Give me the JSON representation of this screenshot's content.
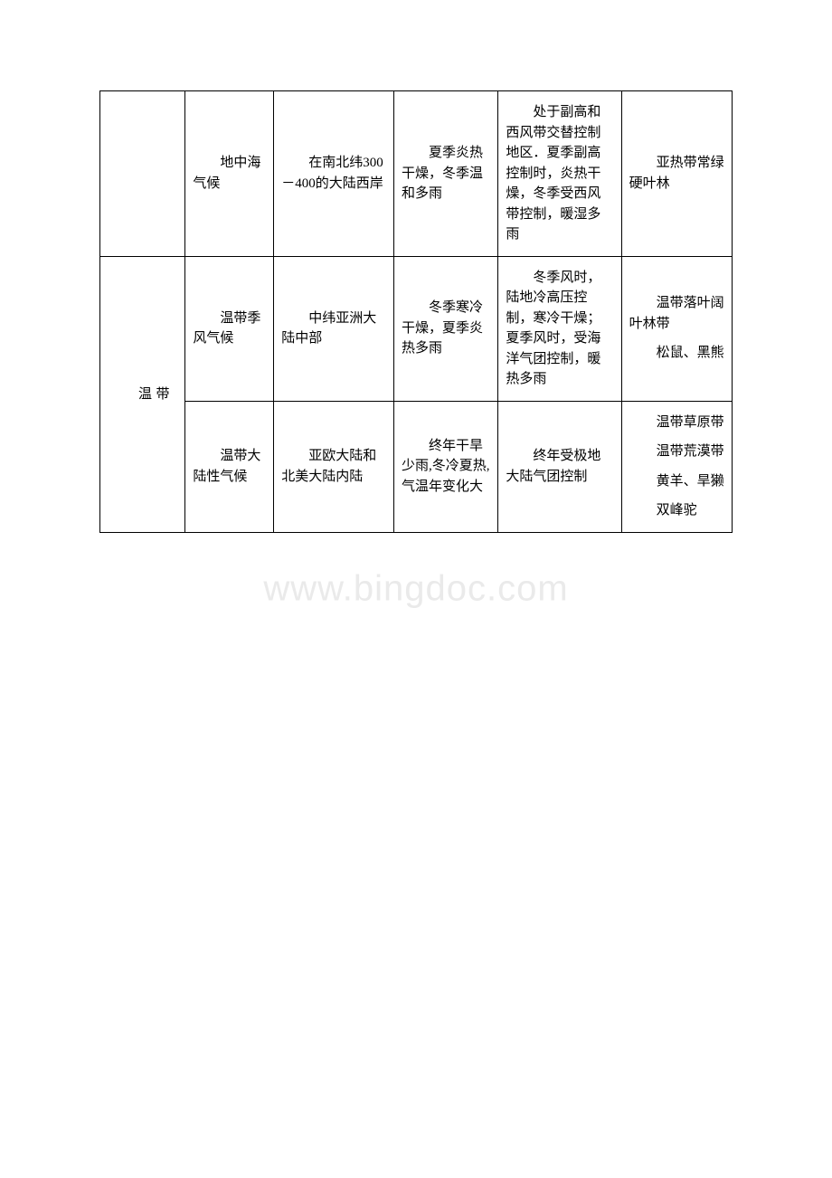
{
  "watermark": "www.bingdoc.com",
  "table": {
    "border_color": "#000000",
    "text_color": "#000000",
    "font_size": 15,
    "rows": [
      {
        "col1": "",
        "col2": "地中海气候",
        "col3": "在南北纬300－400的大陆西岸",
        "col4": "夏季炎热干燥，冬季温和多雨",
        "col5": "处于副高和西风带交替控制地区．夏季副高控制时，炎热干燥，冬季受西风带控制，暖湿多雨",
        "col6": "亚热带常绿硬叶林"
      },
      {
        "col1_zone": "温带",
        "col1_rowspan": 2,
        "col2": "温带季风气候",
        "col3": "中纬亚洲大陆中部",
        "col4": "冬季寒冷干燥，夏季炎热多雨",
        "col5": "冬季风时，陆地冷高压控制，寒冷干燥；夏季风时，受海洋气团控制，暖热多雨",
        "col6_multi": [
          "温带落叶阔叶林带",
          "松鼠、黑熊"
        ]
      },
      {
        "col2": "温带大陆性气候",
        "col3": "亚欧大陆和北美大陆内陆",
        "col4": "终年干旱少雨,冬冷夏热,气温年变化大",
        "col5": "终年受极地大陆气团控制",
        "col6_multi": [
          "温带草原带",
          "温带荒漠带",
          "黄羊、旱獭",
          "双峰驼"
        ]
      }
    ]
  }
}
